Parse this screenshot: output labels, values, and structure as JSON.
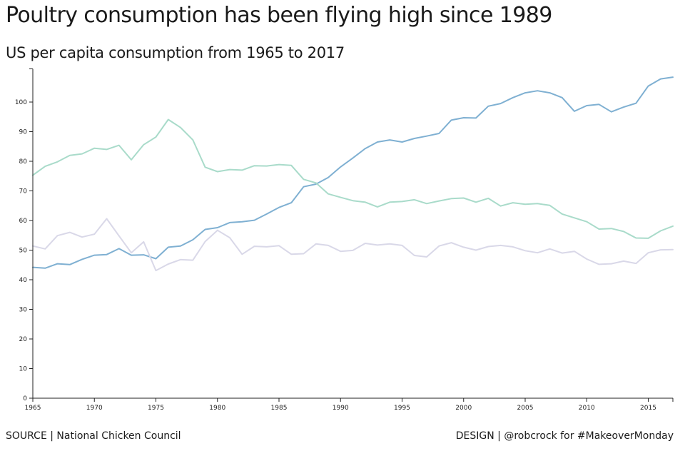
{
  "title": "Poultry consumption has been flying high since 1989",
  "subtitle": "US per capita consumption from 1965 to 2017",
  "source": "SOURCE | National Chicken Council",
  "design": "DESIGN | @robcrock for #MakeoverMonday",
  "chart_data": {
    "type": "line",
    "title": "Poultry consumption has been flying high since 1989",
    "subtitle": "US per capita consumption from 1965 to 2017",
    "xlabel": "",
    "ylabel": "",
    "xlim": [
      1965,
      2017
    ],
    "ylim": [
      0,
      110
    ],
    "x_ticks": [
      1965,
      1970,
      1975,
      1980,
      1985,
      1990,
      1995,
      2000,
      2005,
      2010,
      2015
    ],
    "y_ticks": [
      0,
      10,
      20,
      30,
      40,
      50,
      60,
      70,
      80,
      90,
      100
    ],
    "grid": false,
    "legend": "none",
    "x": [
      1965,
      1966,
      1967,
      1968,
      1969,
      1970,
      1971,
      1972,
      1973,
      1974,
      1975,
      1976,
      1977,
      1978,
      1979,
      1980,
      1981,
      1982,
      1983,
      1984,
      1985,
      1986,
      1987,
      1988,
      1989,
      1990,
      1991,
      1992,
      1993,
      1994,
      1995,
      1996,
      1997,
      1998,
      1999,
      2000,
      2001,
      2002,
      2003,
      2004,
      2005,
      2006,
      2007,
      2008,
      2009,
      2010,
      2011,
      2012,
      2013,
      2014,
      2015,
      2016,
      2017
    ],
    "series": [
      {
        "color": "#7fb0d2",
        "values": [
          44.2,
          43.9,
          45.4,
          45.1,
          46.9,
          48.3,
          48.5,
          50.5,
          48.3,
          48.4,
          47.1,
          51.0,
          51.4,
          53.5,
          57.0,
          57.6,
          59.3,
          59.6,
          60.1,
          62.2,
          64.4,
          66.0,
          71.4,
          72.3,
          74.5,
          78.1,
          81.1,
          84.3,
          86.5,
          87.2,
          86.5,
          87.7,
          88.5,
          89.4,
          93.9,
          94.7,
          94.6,
          98.6,
          99.5,
          101.5,
          103.1,
          103.8,
          103.1,
          101.5,
          96.9,
          98.8,
          99.2,
          96.7,
          98.3,
          99.6,
          105.4,
          107.8,
          108.4
        ]
      },
      {
        "color": "#a9dbca",
        "values": [
          75.3,
          78.3,
          79.8,
          82.0,
          82.5,
          84.4,
          84.0,
          85.4,
          80.5,
          85.6,
          88.2,
          94.1,
          91.4,
          87.2,
          78.0,
          76.5,
          77.2,
          77.0,
          78.5,
          78.4,
          78.9,
          78.6,
          73.9,
          72.7,
          69.0,
          67.8,
          66.7,
          66.2,
          64.6,
          66.2,
          66.4,
          67.0,
          65.7,
          66.6,
          67.4,
          67.6,
          66.2,
          67.5,
          64.9,
          66.0,
          65.5,
          65.7,
          65.1,
          62.2,
          60.9,
          59.6,
          57.1,
          57.3,
          56.3,
          54.1,
          54.0,
          56.5,
          58.1
        ]
      },
      {
        "color": "#d9d8e8",
        "values": [
          51.4,
          50.4,
          54.9,
          56.0,
          54.4,
          55.4,
          60.6,
          54.8,
          49.1,
          52.8,
          43.1,
          45.3,
          46.8,
          46.6,
          52.9,
          56.7,
          54.2,
          48.6,
          51.3,
          51.1,
          51.5,
          48.6,
          48.8,
          52.1,
          51.6,
          49.6,
          49.9,
          52.3,
          51.7,
          52.1,
          51.6,
          48.2,
          47.7,
          51.4,
          52.5,
          51.0,
          50.0,
          51.2,
          51.6,
          51.1,
          49.8,
          49.1,
          50.4,
          49.0,
          49.6,
          47.0,
          45.2,
          45.4,
          46.3,
          45.5,
          49.1,
          50.1,
          50.2
        ]
      }
    ]
  }
}
